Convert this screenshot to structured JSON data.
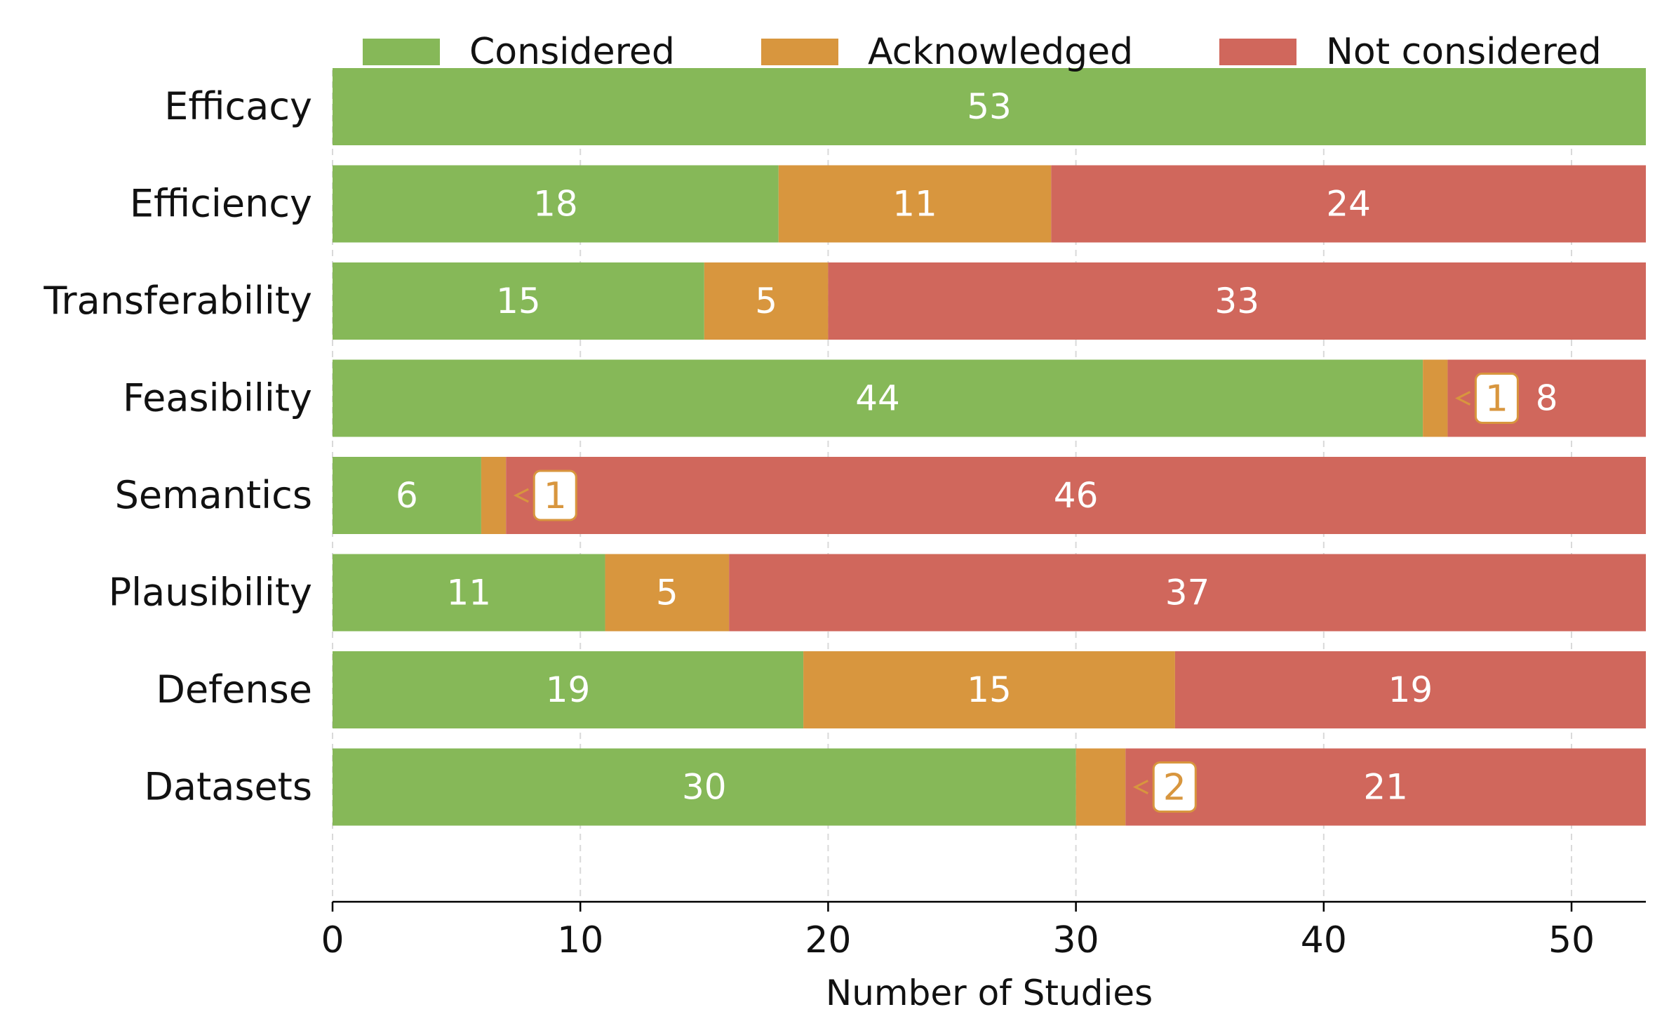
{
  "chart_data": {
    "type": "bar",
    "orientation": "horizontal",
    "stacked": true,
    "categories": [
      "Efficacy",
      "Efficiency",
      "Transferability",
      "Feasibility",
      "Semantics",
      "Plausibility",
      "Defense",
      "Datasets"
    ],
    "series": [
      {
        "name": "Considered",
        "color": "#86b858",
        "values": [
          53,
          18,
          15,
          44,
          6,
          11,
          19,
          30
        ]
      },
      {
        "name": "Acknowledged",
        "color": "#d8963e",
        "values": [
          0,
          11,
          5,
          1,
          1,
          5,
          15,
          2
        ]
      },
      {
        "name": "Not considered",
        "color": "#d0675c",
        "values": [
          0,
          24,
          33,
          8,
          46,
          37,
          19,
          21
        ]
      }
    ],
    "xlabel": "Number of Studies",
    "xlim": [
      0,
      53
    ],
    "xticks": [
      0,
      10,
      20,
      30,
      40,
      50
    ],
    "grid": "x dashed",
    "legend": "top",
    "callouts": [
      {
        "category": "Feasibility",
        "series": "Acknowledged",
        "value": 1
      },
      {
        "category": "Semantics",
        "series": "Acknowledged",
        "value": 1
      },
      {
        "category": "Datasets",
        "series": "Acknowledged",
        "value": 2
      }
    ]
  }
}
